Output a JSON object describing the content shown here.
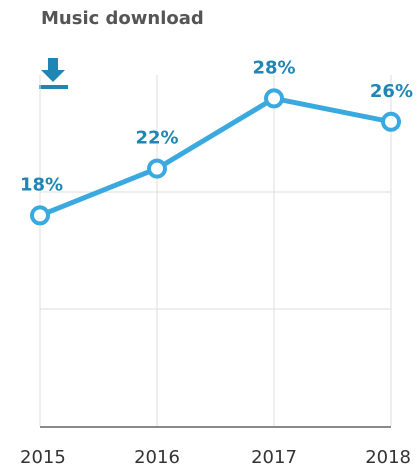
{
  "title": "Music download",
  "icon": "download-icon",
  "colors": {
    "line": "#3aa9df",
    "label": "#1f86b3",
    "grid": "#dddddd",
    "axis": "#8a8a8a"
  },
  "chart_data": {
    "type": "line",
    "title": "Music download",
    "categories": [
      "2015",
      "2016",
      "2017",
      "2018"
    ],
    "values": [
      18,
      22,
      28,
      26
    ],
    "data_labels": [
      "18%",
      "22%",
      "28%",
      "26%"
    ],
    "unit": "%",
    "ylim": [
      0,
      30
    ],
    "grid": true,
    "legend": "none"
  }
}
